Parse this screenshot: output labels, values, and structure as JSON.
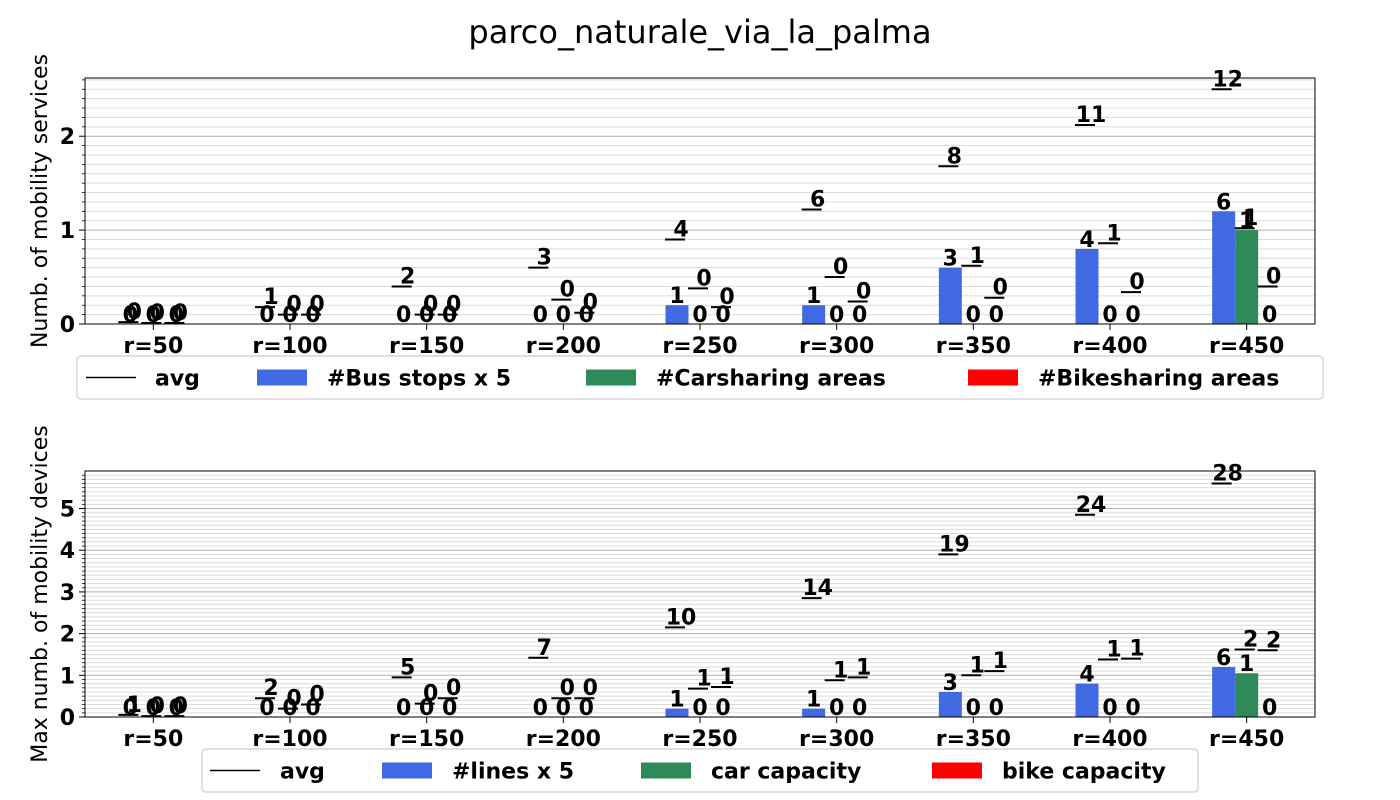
{
  "title": "parco_naturale_via_la_palma",
  "colors": {
    "bus": "#4169e1",
    "car": "#2e8b57",
    "bike": "#ff0000",
    "avg": "#000000",
    "grid": "#b0b0b0"
  },
  "chart_data": [
    {
      "type": "bar",
      "ylabel": "Numb. of mobility services",
      "ylim": [
        0,
        2.62
      ],
      "yticks": [
        "0",
        "1",
        "2"
      ],
      "ytick_values": [
        0,
        1,
        2
      ],
      "grid": true,
      "categories": [
        "r=50",
        "r=100",
        "r=150",
        "r=200",
        "r=250",
        "r=300",
        "r=350",
        "r=400",
        "r=450"
      ],
      "series": [
        {
          "name": "#Bus stops x 5",
          "color": "#4169e1",
          "values": [
            0,
            0,
            0,
            0,
            0.2,
            0.2,
            0.6,
            0.8,
            1.2
          ],
          "labels": [
            "0",
            "0",
            "0",
            "0",
            "1",
            "1",
            "3",
            "4",
            "6"
          ]
        },
        {
          "name": "#Carsharing areas",
          "color": "#2e8b57",
          "values": [
            0,
            0,
            0,
            0,
            0,
            0,
            0,
            0,
            1
          ],
          "labels": [
            "0",
            "0",
            "0",
            "0",
            "0",
            "0",
            "0",
            "0",
            "1"
          ]
        },
        {
          "name": "#Bikesharing areas",
          "color": "#ff0000",
          "values": [
            0,
            0,
            0,
            0,
            0,
            0,
            0,
            0,
            0
          ],
          "labels": [
            "0",
            "0",
            "0",
            "0",
            "0",
            "0",
            "0",
            "0",
            "0"
          ]
        }
      ],
      "avg": {
        "name": "avg",
        "bus": {
          "values": [
            0.02,
            0.18,
            0.4,
            0.6,
            0.9,
            1.22,
            1.68,
            2.12,
            2.5
          ],
          "labels": [
            "0",
            "1",
            "2",
            "3",
            "4",
            "6",
            "8",
            "11",
            "12"
          ]
        },
        "car": {
          "values": [
            0.01,
            0.1,
            0.1,
            0.26,
            0.38,
            0.5,
            0.62,
            0.86,
            1.02
          ],
          "labels": [
            "0",
            "0",
            "0",
            "0",
            "0",
            "0",
            "1",
            "1",
            "1"
          ]
        },
        "bike": {
          "values": [
            0.01,
            0.1,
            0.1,
            0.12,
            0.18,
            0.24,
            0.28,
            0.34,
            0.4
          ],
          "labels": [
            "0",
            "0",
            "0",
            "0",
            "0",
            "0",
            "0",
            "0",
            "0"
          ]
        }
      },
      "legend": {
        "placement": "below",
        "entries": [
          "avg",
          "#Bus stops x 5",
          "#Carsharing areas",
          "#Bikesharing areas"
        ]
      }
    },
    {
      "type": "bar",
      "ylabel": "Max numb. of mobility devices",
      "ylim": [
        0,
        5.9
      ],
      "yticks": [
        "0",
        "1",
        "2",
        "3",
        "4",
        "5"
      ],
      "ytick_values": [
        0,
        1,
        2,
        3,
        4,
        5
      ],
      "grid": true,
      "categories": [
        "r=50",
        "r=100",
        "r=150",
        "r=200",
        "r=250",
        "r=300",
        "r=350",
        "r=400",
        "r=450"
      ],
      "series": [
        {
          "name": "#lines x 5",
          "color": "#4169e1",
          "values": [
            0,
            0,
            0,
            0,
            0.2,
            0.2,
            0.6,
            0.8,
            1.2
          ],
          "labels": [
            "0",
            "0",
            "0",
            "0",
            "1",
            "1",
            "3",
            "4",
            "6"
          ]
        },
        {
          "name": "car capacity",
          "color": "#2e8b57",
          "values": [
            0,
            0,
            0,
            0,
            0,
            0,
            0,
            0,
            1.05
          ],
          "labels": [
            "0",
            "0",
            "0",
            "0",
            "0",
            "0",
            "0",
            "0",
            "1"
          ]
        },
        {
          "name": "bike capacity",
          "color": "#ff0000",
          "values": [
            0,
            0,
            0,
            0,
            0,
            0,
            0,
            0,
            0
          ],
          "labels": [
            "0",
            "0",
            "0",
            "0",
            "0",
            "0",
            "0",
            "0",
            "0"
          ]
        }
      ],
      "avg": {
        "name": "avg",
        "bus": {
          "values": [
            0.05,
            0.45,
            0.95,
            1.42,
            2.15,
            2.85,
            3.9,
            4.85,
            5.6
          ],
          "labels": [
            "1",
            "2",
            "5",
            "7",
            "10",
            "14",
            "19",
            "24",
            "28"
          ]
        },
        "car": {
          "values": [
            0.02,
            0.2,
            0.32,
            0.45,
            0.68,
            0.88,
            1.0,
            1.38,
            1.62
          ],
          "labels": [
            "0",
            "0",
            "0",
            "0",
            "1",
            "1",
            "1",
            "1",
            "2"
          ]
        },
        "bike": {
          "values": [
            0.02,
            0.3,
            0.45,
            0.45,
            0.72,
            0.95,
            1.1,
            1.4,
            1.6
          ],
          "labels": [
            "0",
            "0",
            "0",
            "0",
            "1",
            "1",
            "1",
            "1",
            "2"
          ]
        }
      },
      "legend": {
        "placement": "below",
        "entries": [
          "avg",
          "#lines x 5",
          "car capacity",
          "bike capacity"
        ]
      }
    }
  ]
}
